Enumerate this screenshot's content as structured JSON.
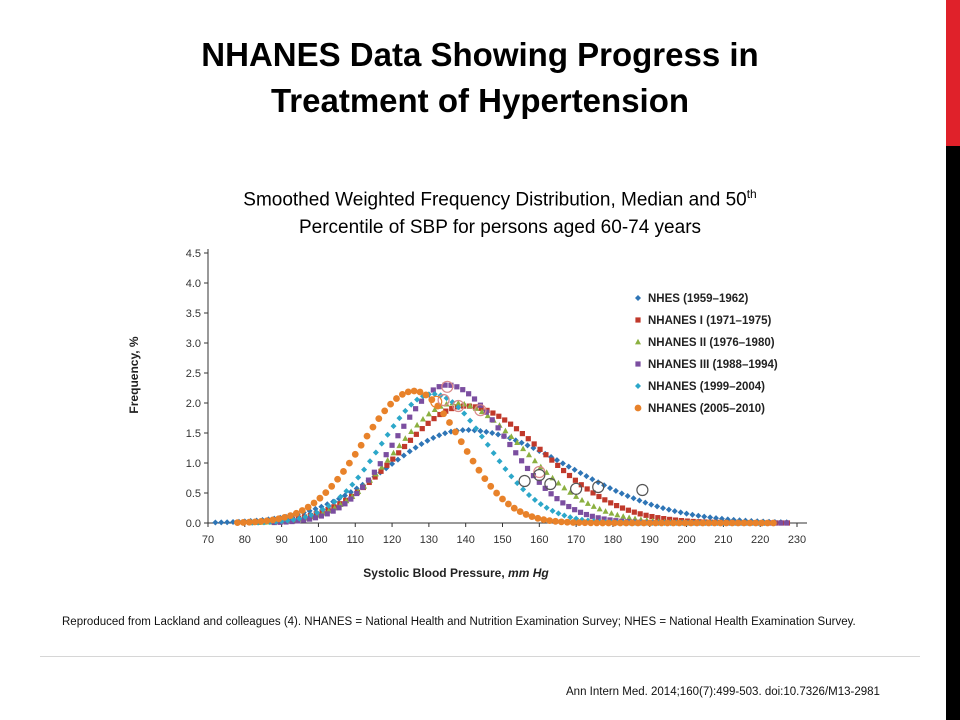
{
  "slide": {
    "title_line1": "NHANES Data Showing Progress in",
    "title_line2": "Treatment of Hypertension",
    "subtitle_part1": "Smoothed Weighted Frequency Distribution, Median and 50",
    "subtitle_sup": "th",
    "subtitle_line2": "Percentile of SBP for persons aged 60-74 years",
    "caption": "Reproduced from Lackland and colleagues (4). NHANES = National Health and Nutrition Examination Survey; NHES = National Health Examination Survey.",
    "citation": "Ann Intern Med. 2014;160(7):499-503.  doi:10.7326/M13-2981",
    "colors": {
      "accent_red": "#e0212a",
      "bar_black": "#000000"
    }
  },
  "chart_data": {
    "type": "line",
    "xlabel": "Systolic Blood Pressure, mm Hg",
    "xlabel_text": "Systolic Blood Pressure,",
    "xlabel_unit": "mm Hg",
    "ylabel": "Frequency, %",
    "xlim": [
      70,
      230
    ],
    "ylim": [
      0,
      4.5
    ],
    "x_ticks": [
      "70",
      "80",
      "90",
      "100",
      "110",
      "120",
      "130",
      "140",
      "150",
      "160",
      "170",
      "180",
      "190",
      "200",
      "210",
      "220",
      "230"
    ],
    "y_ticks": [
      "0.0",
      "0.5",
      "1.0",
      "1.5",
      "2.0",
      "2.5",
      "3.0",
      "3.5",
      "4.0",
      "4.5"
    ],
    "legend_position": "right",
    "series": [
      {
        "name": "NHES (1959–1962)",
        "color": "#2e75b6",
        "marker": "diamond",
        "peak_x": 140,
        "peak_y": 1.55,
        "sd_left": 21,
        "sd_right": 28,
        "x_start": 72,
        "x_end": 228,
        "median": 160,
        "median_y": 0.85,
        "p50_x": 188,
        "p50_y": 0.55
      },
      {
        "name": "NHANES I (1971–1975)",
        "color": "#c0392b",
        "marker": "square",
        "peak_x": 140,
        "peak_y": 1.95,
        "sd_left": 18,
        "sd_right": 21,
        "x_start": 85,
        "x_end": 228,
        "median": 144,
        "median_y": 1.88,
        "p50_x": 176,
        "p50_y": 0.6
      },
      {
        "name": "NHANES II (1976–1980)",
        "color": "#8bb040",
        "marker": "triangle",
        "peak_x": 137,
        "peak_y": 2.0,
        "sd_left": 16,
        "sd_right": 19,
        "x_start": 82,
        "x_end": 222,
        "median": 138,
        "median_y": 1.95,
        "p50_x": 170,
        "p50_y": 0.57
      },
      {
        "name": "NHANES III (1988–1994)",
        "color": "#7b4ea0",
        "marker": "square",
        "peak_x": 135,
        "peak_y": 2.3,
        "sd_left": 14,
        "sd_right": 16,
        "x_start": 88,
        "x_end": 228,
        "median": 135,
        "median_y": 2.27,
        "p50_x": 163,
        "p50_y": 0.65
      },
      {
        "name": "NHANES (1999–2004)",
        "color": "#2ca7c9",
        "marker": "diamond",
        "peak_x": 131,
        "peak_y": 2.15,
        "sd_left": 14,
        "sd_right": 15,
        "x_start": 82,
        "x_end": 222,
        "median": 134,
        "median_y": 2.05,
        "p50_x": 160,
        "p50_y": 0.8
      },
      {
        "name": "NHANES (2005–2010)",
        "color": "#e8822a",
        "marker": "circle",
        "peak_x": 126,
        "peak_y": 2.2,
        "sd_left": 14,
        "sd_right": 13,
        "x_start": 78,
        "x_end": 225,
        "median": 132,
        "median_y": 2.02,
        "p50_x": 156,
        "p50_y": 0.7
      }
    ]
  }
}
